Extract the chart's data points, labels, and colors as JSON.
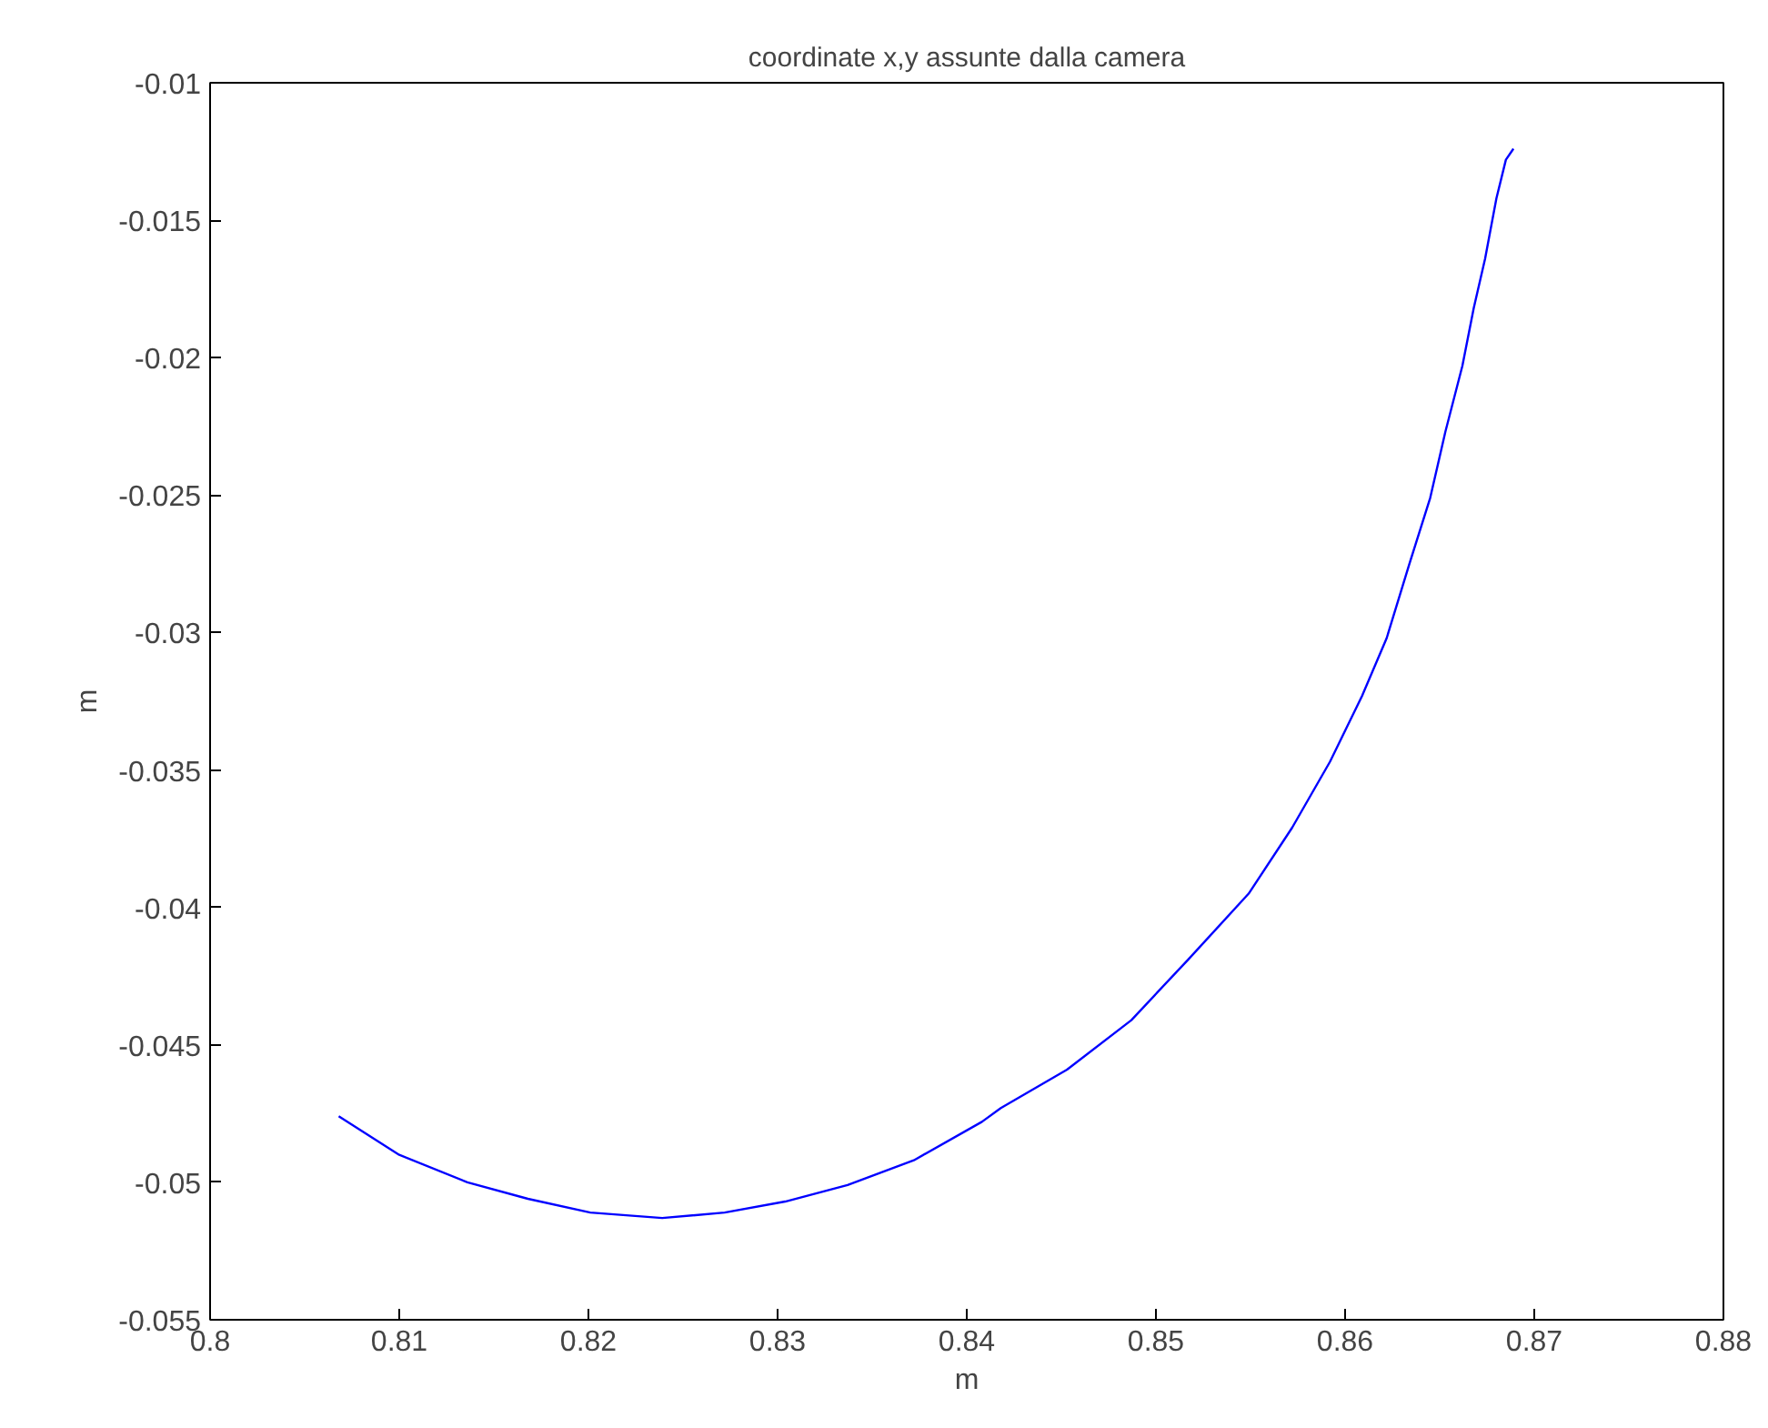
{
  "chart_data": {
    "type": "line",
    "title": "coordinate x,y assunte dalla camera",
    "xlabel": "m",
    "ylabel": "m",
    "xlim": [
      0.8,
      0.88
    ],
    "xticks": [
      0.8,
      0.81,
      0.82,
      0.83,
      0.84,
      0.85,
      0.86,
      0.87,
      0.88
    ],
    "ylim": [
      -0.055,
      -0.01
    ],
    "yticks": [
      -0.055,
      -0.05,
      -0.045,
      -0.04,
      -0.035,
      -0.03,
      -0.025,
      -0.02,
      -0.015,
      -0.01
    ],
    "grid": false,
    "series": [
      {
        "color": "#0000ff",
        "x": [
          0.8068,
          0.81,
          0.8136,
          0.8168,
          0.8201,
          0.8239,
          0.8272,
          0.8304,
          0.8337,
          0.8372,
          0.8408,
          0.8418,
          0.8453,
          0.8487,
          0.8517,
          0.8549,
          0.8572,
          0.8592,
          0.8609,
          0.8622,
          0.8634,
          0.8645,
          0.8653,
          0.8662,
          0.8668,
          0.8674,
          0.868,
          0.8685,
          0.8689
        ],
        "values": [
          -0.0476,
          -0.049,
          -0.05,
          -0.0506,
          -0.0511,
          -0.0513,
          -0.0511,
          -0.0507,
          -0.0501,
          -0.0492,
          -0.0478,
          -0.0473,
          -0.0459,
          -0.0441,
          -0.0419,
          -0.0395,
          -0.0371,
          -0.0347,
          -0.0323,
          -0.0302,
          -0.0275,
          -0.0251,
          -0.0227,
          -0.0203,
          -0.0182,
          -0.0164,
          -0.0142,
          -0.0128,
          -0.0124
        ]
      }
    ]
  }
}
